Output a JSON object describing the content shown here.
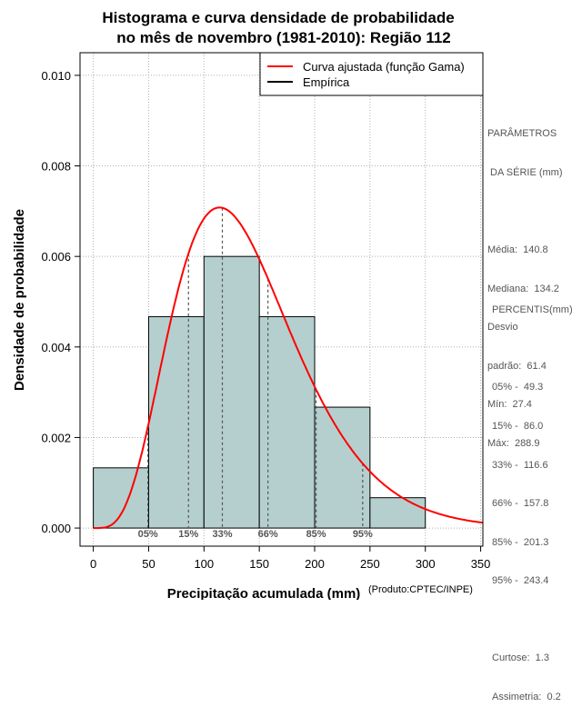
{
  "chart_data": {
    "type": "bar",
    "title_line1": "Histograma e curva densidade de probabilidade",
    "title_line2": "no mês de novembro (1981-2010): Região 112",
    "xlabel": "Precipitação acumulada (mm)",
    "ylabel": "Densidade de probabilidade",
    "credit": "(Produto:CPTEC/INPE)",
    "xlim": [
      -12,
      352
    ],
    "ylim": [
      -0.0004,
      0.0105
    ],
    "x_ticks": [
      0,
      50,
      100,
      150,
      200,
      250,
      300,
      350
    ],
    "x_tick_labels": [
      "0",
      "50",
      "100",
      "150",
      "200",
      "250",
      "300",
      "350"
    ],
    "y_ticks": [
      0,
      0.002,
      0.004,
      0.006,
      0.008,
      0.01
    ],
    "y_tick_labels": [
      "0.000",
      "0.002",
      "0.004",
      "0.006",
      "0.008",
      "0.010"
    ],
    "grid": true,
    "bins": [
      {
        "from": 0,
        "to": 50,
        "density": 0.00133
      },
      {
        "from": 50,
        "to": 100,
        "density": 0.00467
      },
      {
        "from": 100,
        "to": 150,
        "density": 0.006
      },
      {
        "from": 150,
        "to": 200,
        "density": 0.00467
      },
      {
        "from": 200,
        "to": 250,
        "density": 0.00267
      },
      {
        "from": 250,
        "to": 300,
        "density": 0.00067
      }
    ],
    "bar_color": "#b5cfcf",
    "curve_color": "#ff0000",
    "gamma_fit": {
      "mean": 140.8,
      "sd": 61.4
    },
    "legend": {
      "position": "top-right",
      "entries": [
        {
          "label": "Curva ajustada (função Gama)",
          "color": "#ff0000"
        },
        {
          "label": "Empírica",
          "color": "#000000"
        }
      ]
    },
    "percentile_markers": [
      {
        "label": "05%",
        "x": 49.3
      },
      {
        "label": "15%",
        "x": 86.0
      },
      {
        "label": "33%",
        "x": 116.6
      },
      {
        "label": "66%",
        "x": 157.8
      },
      {
        "label": "85%",
        "x": 201.3
      },
      {
        "label": "95%",
        "x": 243.4
      }
    ]
  },
  "side_panel": {
    "params_title_1": "PARÂMETROS",
    "params_title_2": " DA SÉRIE (mm)",
    "media": "Média:  140.8",
    "mediana": "Mediana:  134.2",
    "desvio_1": "Desvio",
    "desvio_2": "padrão:  61.4",
    "min": "Mín:  27.4",
    "max": "Máx:  288.9",
    "percentis_title": "PERCENTIS(mm)",
    "p05": "05% -  49.3",
    "p15": "15% -  86.0",
    "p33": "33% -  116.6",
    "p66": "66% -  157.8",
    "p85": "85% -  201.3",
    "p95": "95% -  243.4",
    "curtose": "Curtose:  1.3",
    "assimetria": "Assimetria:  0.2"
  }
}
